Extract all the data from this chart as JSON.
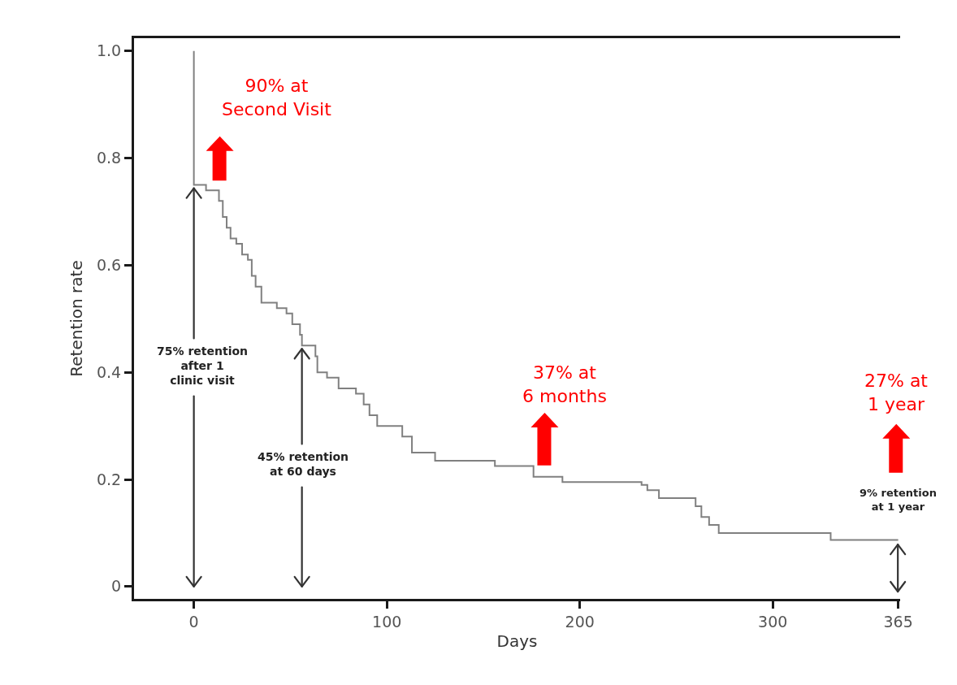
{
  "chart_data": {
    "type": "step",
    "xlabel": "Days",
    "ylabel": "Retention rate",
    "series": [
      {
        "color": "#808080",
        "x": [
          0,
          0,
          6.3,
          13,
          15,
          17,
          19,
          22,
          25,
          28,
          30,
          32,
          35,
          43,
          48,
          51,
          55,
          56,
          63,
          64,
          69,
          75,
          84,
          88,
          91,
          95,
          108,
          113,
          125,
          156,
          176,
          191,
          232,
          235,
          241,
          260,
          263,
          267,
          272,
          330,
          365
        ],
        "values": [
          1.0,
          0.75,
          0.74,
          0.72,
          0.69,
          0.67,
          0.65,
          0.64,
          0.62,
          0.61,
          0.58,
          0.56,
          0.53,
          0.52,
          0.51,
          0.49,
          0.47,
          0.45,
          0.43,
          0.4,
          0.39,
          0.37,
          0.36,
          0.34,
          0.32,
          0.3,
          0.28,
          0.25,
          0.235,
          0.225,
          0.205,
          0.195,
          0.19,
          0.18,
          0.165,
          0.15,
          0.13,
          0.115,
          0.1,
          0.087,
          0.087
        ]
      }
    ],
    "xlim": [
      -31,
      366
    ],
    "xticks": [
      0,
      100,
      200,
      300,
      365
    ],
    "ylim": [
      -0.023,
      1.024
    ],
    "yticks": [
      0,
      0.2,
      0.4,
      0.6,
      0.8,
      {
        "value": 1,
        "label": "1.0"
      }
    ],
    "grid": false,
    "legend": false,
    "marker": "none",
    "line_style": "solid",
    "annotations": [
      {
        "text": "75% retention\nafter 1\nclinic visit",
        "x": 0,
        "y": 0.75
      },
      {
        "text": "45% retention\nat 60 days",
        "x": 56,
        "y": 0.45
      },
      "9% retention\nat 1 year",
      "90% at\nSecond Visit",
      "37% at\n6 months",
      "27% at\n1 year"
    ]
  }
}
